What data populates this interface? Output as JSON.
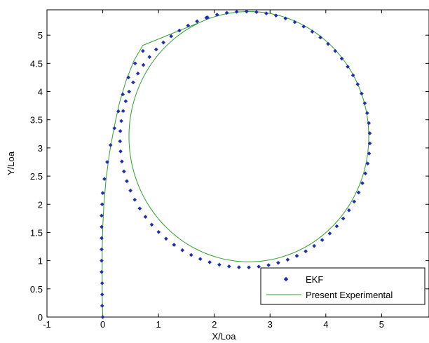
{
  "chart_data": {
    "type": "scatter",
    "title": "",
    "xlabel": "X/Loa",
    "ylabel": "Y/Loa",
    "xlim": [
      -1,
      5.85
    ],
    "ylim": [
      0,
      5.45
    ],
    "xticks": [
      -1,
      0,
      1,
      2,
      3,
      4,
      5
    ],
    "yticks": [
      0,
      0.5,
      1,
      1.5,
      2,
      2.5,
      3,
      3.5,
      4,
      4.5,
      5
    ],
    "grid": false,
    "legend_position": "bottom-right",
    "series": [
      {
        "name": "EKF",
        "style": "markers",
        "marker": "diamond",
        "color": "#1f2fb0",
        "approach_x": [
          0,
          -0.01,
          -0.01,
          -0.01,
          -0.02,
          -0.02,
          -0.02,
          -0.02,
          -0.02,
          -0.02,
          -0.01,
          0.0,
          0.03,
          0.08,
          0.14,
          0.21,
          0.28,
          0.36,
          0.46,
          0.58,
          0.72
        ],
        "approach_y": [
          0,
          0.2,
          0.4,
          0.6,
          0.8,
          1.0,
          1.2,
          1.4,
          1.6,
          1.8,
          2.0,
          2.2,
          2.45,
          2.75,
          3.05,
          3.35,
          3.65,
          3.95,
          4.25,
          4.5,
          4.72
        ],
        "circle_center": [
          2.55,
          3.15
        ],
        "circle_radius_x": 2.24,
        "circle_radius_y": 2.27,
        "circle_start_deg": 112,
        "circle_end_deg": -252,
        "circle_points": 80
      },
      {
        "name": "Present Experimental",
        "style": "line",
        "color": "#2ca02c",
        "approach_x": [
          0,
          -0.01,
          -0.01,
          -0.01,
          0.0,
          0.02,
          0.06,
          0.12,
          0.2,
          0.3,
          0.42,
          0.56,
          0.72
        ],
        "approach_y": [
          0,
          0.4,
          0.8,
          1.2,
          1.6,
          2.0,
          2.45,
          2.9,
          3.35,
          3.8,
          4.2,
          4.55,
          4.82
        ],
        "circle_center": [
          2.62,
          3.2
        ],
        "circle_radius_x": 2.15,
        "circle_radius_y": 2.22,
        "circle_start_deg": 115,
        "circle_end_deg": -245
      }
    ]
  }
}
